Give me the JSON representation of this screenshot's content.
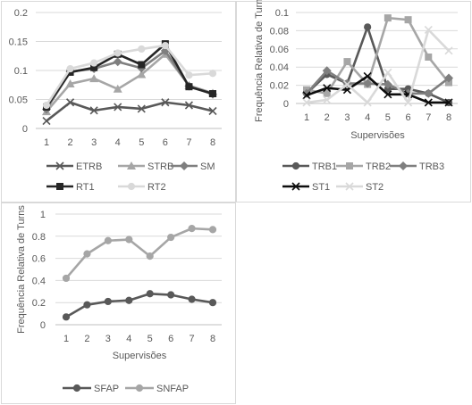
{
  "chart_data": [
    {
      "type": "line",
      "title": "",
      "xlabel": "",
      "ylabel": "",
      "categories": [
        "1",
        "2",
        "3",
        "4",
        "5",
        "6",
        "7",
        "8"
      ],
      "yticks": [
        "0",
        "0.05",
        "0.1",
        "0.15",
        "0.2"
      ],
      "ylim": [
        0,
        0.2
      ],
      "grid": true,
      "legend_position": "bottom",
      "series": [
        {
          "name": "ETRB",
          "color": "#595959",
          "marker": "x",
          "values": [
            0.013,
            0.045,
            0.031,
            0.037,
            0.034,
            0.045,
            0.04,
            0.03
          ]
        },
        {
          "name": "STRB",
          "color": "#a6a6a6",
          "marker": "triangle",
          "values": [
            0.029,
            0.077,
            0.086,
            0.068,
            0.093,
            0.128,
            0.074,
            0.061
          ]
        },
        {
          "name": "SM",
          "color": "#7f7f7f",
          "marker": "diamond",
          "values": [
            0.033,
            0.098,
            0.103,
            0.115,
            0.104,
            0.134,
            0.073,
            0.059
          ]
        },
        {
          "name": "RT1",
          "color": "#262626",
          "marker": "square",
          "values": [
            0.037,
            0.097,
            0.105,
            0.128,
            0.11,
            0.146,
            0.072,
            0.06
          ]
        },
        {
          "name": "RT2",
          "color": "#d9d9d9",
          "marker": "circle",
          "values": [
            0.04,
            0.103,
            0.113,
            0.13,
            0.137,
            0.143,
            0.092,
            0.095
          ]
        }
      ]
    },
    {
      "type": "line",
      "title": "",
      "xlabel": "Supervisões",
      "ylabel": "Frequência Relativa de Turns",
      "categories": [
        "1",
        "2",
        "3",
        "4",
        "5",
        "6",
        "7",
        "8"
      ],
      "yticks": [
        "0",
        "0.02",
        "0.04",
        "0.06",
        "0.08",
        "0.1"
      ],
      "ylim": [
        0,
        0.1
      ],
      "grid": true,
      "legend_position": "bottom",
      "series": [
        {
          "name": "TRB1",
          "color": "#595959",
          "marker": "circle",
          "values": [
            0.011,
            0.032,
            0.022,
            0.084,
            0.016,
            0.016,
            0.011,
            0.001
          ]
        },
        {
          "name": "TRB2",
          "color": "#a6a6a6",
          "marker": "square",
          "values": [
            0.015,
            0.011,
            0.046,
            0.021,
            0.094,
            0.092,
            0.051,
            0.023
          ]
        },
        {
          "name": "TRB3",
          "color": "#7f7f7f",
          "marker": "diamond",
          "values": [
            0.011,
            0.036,
            0.022,
            0.022,
            0.021,
            0.011,
            0.011,
            0.028
          ]
        },
        {
          "name": "ST1",
          "color": "#0d0d0d",
          "marker": "x",
          "values": [
            0.009,
            0.017,
            0.015,
            0.03,
            0.01,
            0.01,
            0.001,
            0.001
          ]
        },
        {
          "name": "ST2",
          "color": "#d9d9d9",
          "marker": "x",
          "values": [
            0.001,
            0.004,
            0.021,
            0.001,
            0.034,
            0.001,
            0.081,
            0.058
          ]
        }
      ]
    },
    {
      "type": "line",
      "title": "",
      "xlabel": "Supervisões",
      "ylabel": "Frequência Relativa de Turns",
      "categories": [
        "1",
        "2",
        "3",
        "4",
        "5",
        "6",
        "7",
        "8"
      ],
      "yticks": [
        "0",
        "0.2",
        "0.4",
        "0.6",
        "0.8",
        "1"
      ],
      "ylim": [
        0,
        1
      ],
      "grid": true,
      "legend_position": "bottom",
      "series": [
        {
          "name": "SFAP",
          "color": "#595959",
          "marker": "circle",
          "values": [
            0.07,
            0.18,
            0.21,
            0.22,
            0.28,
            0.27,
            0.23,
            0.2
          ]
        },
        {
          "name": "SNFAP",
          "color": "#a6a6a6",
          "marker": "circle",
          "values": [
            0.42,
            0.64,
            0.76,
            0.77,
            0.62,
            0.79,
            0.87,
            0.86
          ]
        }
      ]
    }
  ]
}
